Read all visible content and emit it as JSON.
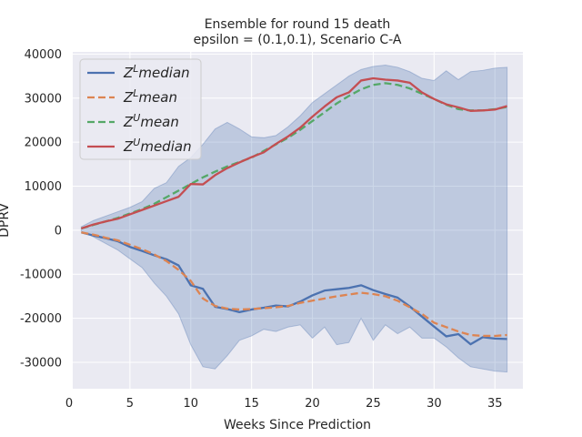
{
  "chart_data": {
    "type": "line",
    "title": "Ensemble for round 15 death",
    "subtitle": "epsilon = (0.1,0.1), Scenario C-A",
    "xlabel": "Weeks Since Prediction",
    "ylabel": "DPRV",
    "xlim": [
      0.3,
      37.3
    ],
    "ylim": [
      -36000,
      40500
    ],
    "xticks": [
      0,
      5,
      10,
      15,
      20,
      25,
      30,
      35
    ],
    "yticks": [
      -30000,
      -20000,
      -10000,
      0,
      10000,
      20000,
      30000,
      40000
    ],
    "grid": true,
    "legend_position": "upper-left",
    "x": [
      1,
      2,
      3,
      4,
      5,
      6,
      7,
      8,
      9,
      10,
      11,
      12,
      13,
      14,
      15,
      16,
      17,
      18,
      19,
      20,
      21,
      22,
      23,
      24,
      25,
      26,
      27,
      28,
      29,
      30,
      31,
      32,
      33,
      34,
      35,
      36
    ],
    "band": {
      "upper": [
        800,
        2200,
        3200,
        4200,
        5200,
        6500,
        9500,
        10800,
        14500,
        16500,
        19500,
        23000,
        24500,
        23000,
        21200,
        21000,
        21500,
        23500,
        26000,
        29000,
        31000,
        33000,
        35000,
        36500,
        37200,
        37500,
        37000,
        36000,
        34500,
        34000,
        36200,
        34200,
        36000,
        36300,
        36800,
        37000
      ],
      "lower": [
        -200,
        -1500,
        -3000,
        -4500,
        -6500,
        -8500,
        -12000,
        -15000,
        -19000,
        -26000,
        -31000,
        -31500,
        -28500,
        -25000,
        -24000,
        -22500,
        -23000,
        -22000,
        -21500,
        -24500,
        -22000,
        -26000,
        -25500,
        -20000,
        -25000,
        -21500,
        -23500,
        -22000,
        -24500,
        -24500,
        -26500,
        -29000,
        -31000,
        -31500,
        -32000,
        -32200
      ],
      "color": "#4c72b0"
    },
    "series": [
      {
        "name": "median",
        "prefix": "Z",
        "sup": "L",
        "color": "#4c72b0",
        "dashed": false,
        "values": [
          -500,
          -1200,
          -1800,
          -2500,
          -3800,
          -4700,
          -5700,
          -6600,
          -8000,
          -12500,
          -13300,
          -17400,
          -17900,
          -18600,
          -18000,
          -17600,
          -17100,
          -17300,
          -16200,
          -14800,
          -13700,
          -13400,
          -13100,
          -12500,
          -13600,
          -14500,
          -15300,
          -17300,
          -19600,
          -21900,
          -24100,
          -23600,
          -25900,
          -24300,
          -24600,
          -24700
        ]
      },
      {
        "name": "mean",
        "prefix": "Z",
        "sup": "L",
        "color": "#dd8452",
        "dashed": true,
        "values": [
          -500,
          -1000,
          -1700,
          -2300,
          -3300,
          -4300,
          -5500,
          -7000,
          -9000,
          -11500,
          -15500,
          -17200,
          -17800,
          -18000,
          -17900,
          -17700,
          -17500,
          -17200,
          -16500,
          -16000,
          -15500,
          -15000,
          -14600,
          -14200,
          -14500,
          -15000,
          -16000,
          -17500,
          -19000,
          -21000,
          -22000,
          -23000,
          -23800,
          -24000,
          -24000,
          -23800
        ]
      },
      {
        "name": "mean",
        "prefix": "Z",
        "sup": "U",
        "color": "#55a868",
        "dashed": true,
        "values": [
          400,
          1200,
          2000,
          2800,
          3800,
          4800,
          6000,
          7500,
          9000,
          10500,
          12000,
          13300,
          14500,
          15500,
          16500,
          18000,
          19500,
          21000,
          22800,
          24800,
          26800,
          28800,
          30500,
          32000,
          33000,
          33400,
          33000,
          32200,
          31000,
          29800,
          28500,
          27500,
          27200,
          27200,
          27500,
          28000
        ]
      },
      {
        "name": "median",
        "prefix": "Z",
        "sup": "U",
        "color": "#c44e52",
        "dashed": false,
        "values": [
          400,
          1300,
          2000,
          2600,
          3600,
          4600,
          5600,
          6600,
          7600,
          10500,
          10400,
          12500,
          14100,
          15400,
          16600,
          17700,
          19600,
          21300,
          23300,
          25800,
          28100,
          30200,
          31300,
          34000,
          34500,
          34200,
          34000,
          33500,
          31300,
          29800,
          28600,
          27900,
          27100,
          27200,
          27400,
          28200
        ]
      }
    ]
  }
}
